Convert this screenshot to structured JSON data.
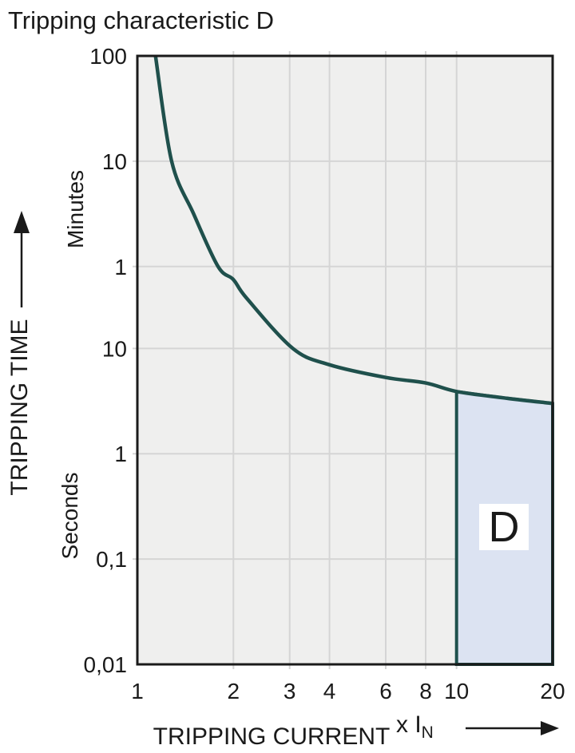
{
  "title": "Tripping characteristic D",
  "chart_data": {
    "type": "line",
    "title": "Tripping characteristic D",
    "x_axis": {
      "label": "TRIPPING CURRENT",
      "unit_prefix": "x I",
      "unit_subscript": "N",
      "scale": "log",
      "min": 1,
      "max": 20,
      "ticks": [
        {
          "label": "1",
          "value": 1
        },
        {
          "label": "2",
          "value": 2
        },
        {
          "label": "3",
          "value": 3
        },
        {
          "label": "4",
          "value": 4
        },
        {
          "label": "6",
          "value": 6
        },
        {
          "label": "8",
          "value": 8
        },
        {
          "label": "10",
          "value": 10
        },
        {
          "label": "20",
          "value": 20
        }
      ]
    },
    "y_axis": {
      "label": "TRIPPING TIME",
      "scale": "log",
      "min_seconds": 0.01,
      "max_seconds": 6000,
      "minutes_label": "Minutes",
      "seconds_label": "Seconds",
      "ticks": [
        {
          "label": "100",
          "seconds": 6000,
          "unit": "minutes"
        },
        {
          "label": "10",
          "seconds": 600,
          "unit": "minutes"
        },
        {
          "label": "1",
          "seconds": 60,
          "unit": "minutes"
        },
        {
          "label": "10",
          "seconds": 10,
          "unit": "seconds"
        },
        {
          "label": "1",
          "seconds": 1,
          "unit": "seconds"
        },
        {
          "label": "0,1",
          "seconds": 0.1,
          "unit": "seconds"
        },
        {
          "label": "0,01",
          "seconds": 0.01,
          "unit": "seconds"
        }
      ]
    },
    "grid": {
      "x_values": [
        2,
        3,
        4,
        6,
        8,
        10
      ],
      "y_values_seconds": [
        600,
        60,
        10,
        1,
        0.1
      ]
    },
    "series": [
      {
        "name": "tripping-time-curve",
        "color": "#1f504c",
        "points_x_in_vs_t_seconds": [
          [
            1.14,
            6000
          ],
          [
            1.28,
            600
          ],
          [
            1.5,
            190
          ],
          [
            1.79,
            60
          ],
          [
            2.0,
            45
          ],
          [
            2.2,
            30
          ],
          [
            3.07,
            10
          ],
          [
            4.0,
            7.0
          ],
          [
            6.0,
            5.3
          ],
          [
            8.0,
            4.7
          ],
          [
            10,
            3.9
          ],
          [
            14,
            3.4
          ],
          [
            20,
            3.0
          ]
        ]
      }
    ],
    "region": {
      "label": "D",
      "x_from": 10,
      "x_to": 20,
      "t_bottom_seconds": 0.01,
      "top_follows_curve": true,
      "fill": "#dce3f2",
      "border": "#1f504c"
    },
    "colors": {
      "plot_background": "#efefee",
      "grid_line": "#d5d5d5",
      "plot_border": "#1a1a1a",
      "text": "#1a1a1a",
      "curve": "#1f504c",
      "region_fill": "#dce3f2",
      "region_label_background": "#ffffff"
    },
    "legend": "none"
  }
}
